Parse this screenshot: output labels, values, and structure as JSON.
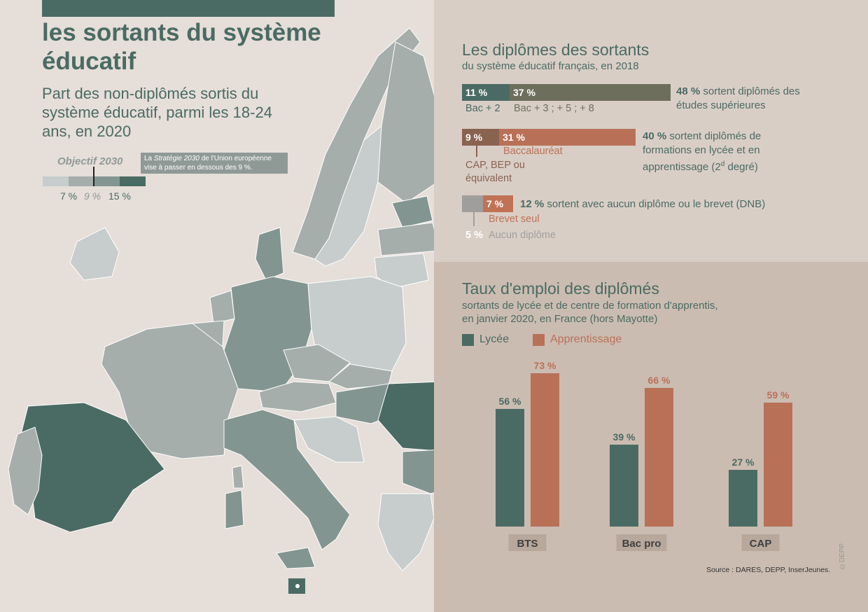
{
  "header": {
    "title": "les sortants du système éducatif",
    "subtitle": "Part des non-diplômés sortis du système éducatif, parmi les 18-24 ans, en 2020"
  },
  "map_legend": {
    "objective_label": "Objectif 2030",
    "objective_note_prefix": "La ",
    "objective_note_em": "Stratégie 2030",
    "objective_note_suffix": " de l'Union européenne vise à passer en dessous des 9 %.",
    "ticks": [
      "7 %",
      "9 %",
      "15 %"
    ],
    "colors": [
      "#c6cdcc",
      "#a5aeab",
      "#839591",
      "#4a6b63"
    ]
  },
  "diplomes": {
    "title": "Les diplômes des sortants",
    "subtitle": "du système éducatif français, en 2018",
    "rows": [
      {
        "segments": [
          {
            "value": 11,
            "label": "11 %",
            "color": "#4a6b63"
          },
          {
            "value": 37,
            "label": "37 %",
            "color": "#6d6e5c"
          }
        ],
        "sublabels": [
          "Bac + 2",
          "Bac + 3 ; + 5 ; + 8"
        ],
        "note_bold": "48 %",
        "note_text": " sortent diplômés des études supérieures"
      },
      {
        "segments": [
          {
            "value": 9,
            "label": "9 %",
            "color": "#8a6250"
          },
          {
            "value": 31,
            "label": "31 %",
            "color": "#b87157"
          }
        ],
        "sublabels": [
          "CAP, BEP ou équivalent",
          "Baccalauréat"
        ],
        "note_bold": "40 %",
        "note_text": " sortent diplômés de formations en lycée et en apprentissage (2",
        "note_sup": "d",
        "note_end": " degré)"
      },
      {
        "segments": [
          {
            "value": 5,
            "label": "5 %",
            "color": "#a09e9d"
          },
          {
            "value": 7,
            "label": "7 %",
            "color": "#c07255"
          }
        ],
        "sublabels": [
          "Aucun diplôme",
          "Brevet seul"
        ],
        "note_bold": "12 %",
        "note_text": " sortent avec aucun diplôme ou le brevet (DNB)"
      }
    ]
  },
  "emploi": {
    "title": "Taux d'emploi des diplômés",
    "subtitle_line1": "sortants de lycée et de centre de formation d'apprentis,",
    "subtitle_line2": "en janvier 2020, en France (hors Mayotte)",
    "colors": {
      "lycee": "#4a6b63",
      "apprentissage": "#b87157"
    }
  },
  "chart_data": {
    "type": "bar",
    "categories": [
      "BTS",
      "Bac pro",
      "CAP"
    ],
    "series": [
      {
        "name": "Lycée",
        "values": [
          56,
          39,
          27
        ]
      },
      {
        "name": "Apprentissage",
        "values": [
          73,
          66,
          59
        ]
      }
    ],
    "value_labels": [
      [
        "56 %",
        "39 %",
        "27 %"
      ],
      [
        "73 %",
        "66 %",
        "59 %"
      ]
    ],
    "unit": "%",
    "ylim": [
      0,
      75
    ],
    "legend_position": "top-left",
    "grid": false
  },
  "footer": {
    "source": "Source : DARES, DEPP, InserJeunes.",
    "copyright": "©DEPP"
  }
}
